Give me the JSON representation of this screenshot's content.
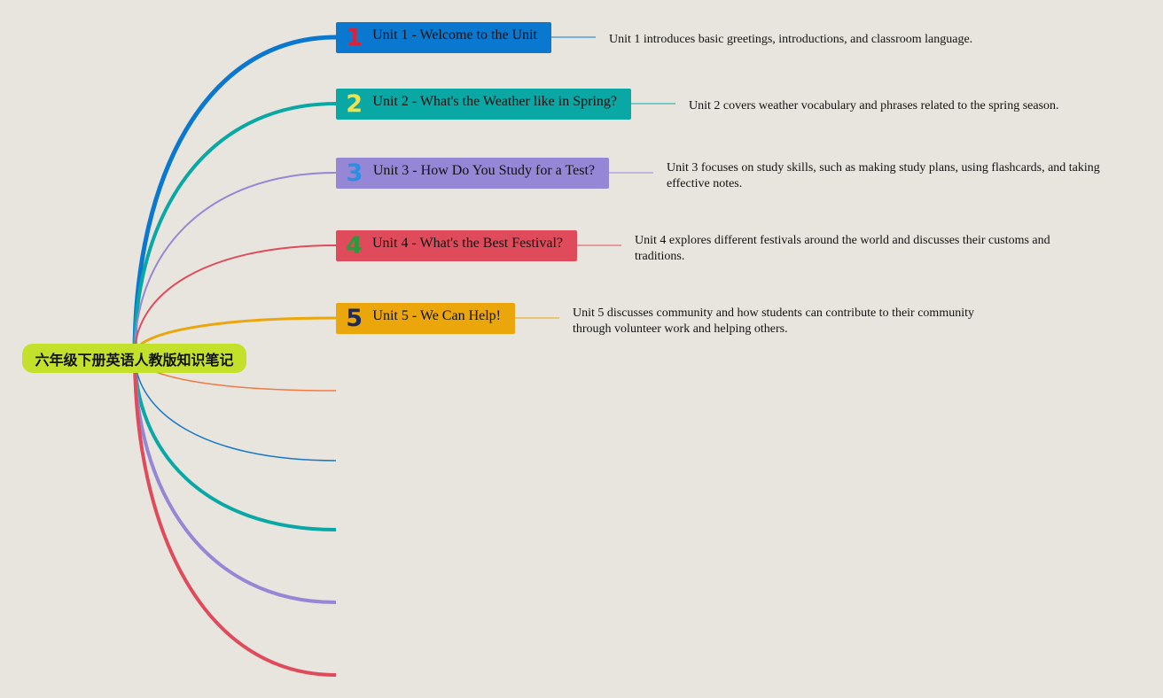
{
  "root": {
    "label": "六年级下册英语人教版知识笔记"
  },
  "nodes": [
    {
      "number": "1",
      "title": "Unit 1 - Welcome to the Unit",
      "description": "Unit 1 introduces basic greetings, introductions, and classroom language."
    },
    {
      "number": "2",
      "title": "Unit 2 - What's the Weather like in Spring?",
      "description": "Unit 2 covers weather vocabulary and phrases related to the spring season."
    },
    {
      "number": "3",
      "title": "Unit 3 - How Do You Study for a Test?",
      "description": "Unit 3 focuses on study skills, such as making study plans, using flashcards, and taking effective notes."
    },
    {
      "number": "4",
      "title": "Unit 4 - What's the Best Festival?",
      "description": "Unit 4 explores different festivals around the world and discusses their customs and traditions."
    },
    {
      "number": "5",
      "title": "Unit 5 - We Can Help!",
      "description": "Unit 5 discusses community and how students can contribute to their community through volunteer work and helping others."
    }
  ]
}
